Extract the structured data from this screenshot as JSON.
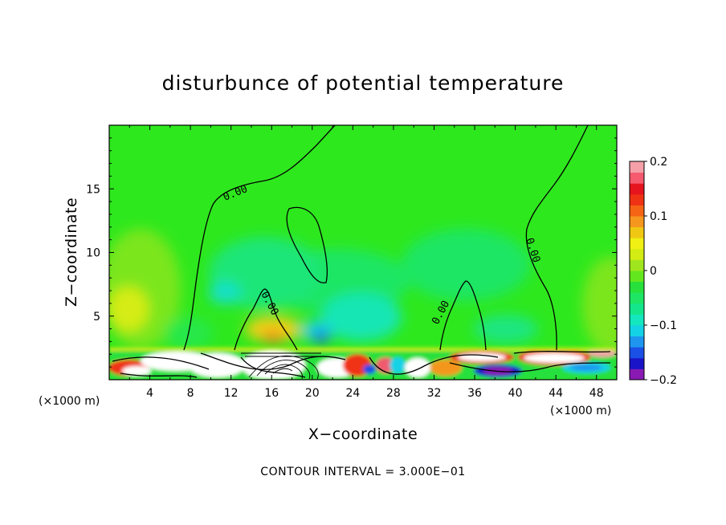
{
  "chart_data": {
    "type": "heatmap",
    "title": "disturbunce of potential temperature",
    "xlabel": "X−coordinate",
    "ylabel": "Z−coordinate",
    "x_unit": "(×1000 m)",
    "y_unit": "(×1000 m)",
    "xlim": [
      0,
      50
    ],
    "ylim": [
      0,
      20
    ],
    "x_ticks": [
      4,
      8,
      12,
      16,
      20,
      24,
      28,
      32,
      36,
      40,
      44,
      48
    ],
    "y_ticks": [
      5,
      10,
      15
    ],
    "x_tick_labels": [
      "4",
      "8",
      "12",
      "16",
      "20",
      "24",
      "28",
      "32",
      "36",
      "40",
      "44",
      "48"
    ],
    "y_tick_labels": [
      "5",
      "10",
      "15"
    ],
    "footer": "CONTOUR INTERVAL = 3.000E−01",
    "contour_label": "0.00",
    "colorbar": {
      "min": -0.2,
      "max": 0.2,
      "tick_values": [
        -0.2,
        -0.1,
        0,
        0.1,
        0.2
      ],
      "tick_labels": [
        "−0.2",
        "−0.1",
        "0",
        "0.1",
        "0.2"
      ],
      "colors": [
        "#8a1ab4",
        "#1a14c8",
        "#1a50e6",
        "#1e96f0",
        "#14d2e6",
        "#14e6be",
        "#14e68c",
        "#1ee664",
        "#28e03c",
        "#64e61e",
        "#a0e61e",
        "#d2ec14",
        "#f0f014",
        "#f0c814",
        "#f5961e",
        "#f56414",
        "#f03214",
        "#e6141e",
        "#f55a6e",
        "#f5a0a8"
      ]
    },
    "contour_level": 0.0
  }
}
